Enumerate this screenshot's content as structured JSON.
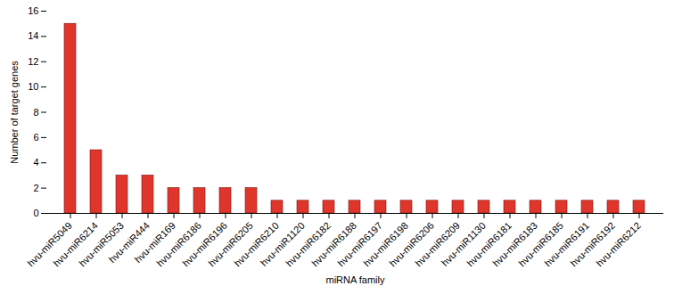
{
  "chart_data": {
    "type": "bar",
    "categories": [
      "hvu-miR5049",
      "hvu-miR6214",
      "hvu-miR5053",
      "hvu-miR444",
      "hvu-miR169",
      "hvu-miR6186",
      "hvu-miR6196",
      "hvu-miR6205",
      "hvu-miR6210",
      "hvu-miR1120",
      "hvu-miR6182",
      "hvu-miR6188",
      "hvu-miR6197",
      "hvu-miR6198",
      "hvu-miR6206",
      "hvu-miR6209",
      "hvu-miR1130",
      "hvu-miR6181",
      "hvu-miR6183",
      "hvu-miR6185",
      "hvu-miR6191",
      "hvu-miR6192",
      "hvu-miR6212"
    ],
    "values": [
      15,
      5,
      3,
      3,
      2,
      2,
      2,
      2,
      1,
      1,
      1,
      1,
      1,
      1,
      1,
      1,
      1,
      1,
      1,
      1,
      1,
      1,
      1
    ],
    "color": "#e0352b",
    "x_label": "miRNA family",
    "y_label": "Number of target genes",
    "ylim": [
      0,
      16
    ],
    "yticks": [
      0,
      2,
      4,
      6,
      8,
      10,
      12,
      14,
      16
    ],
    "grid": false
  }
}
